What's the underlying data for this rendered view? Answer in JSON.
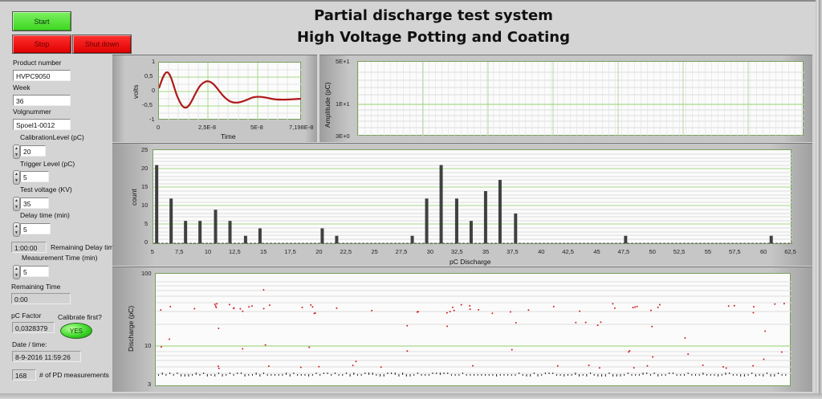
{
  "header": {
    "title_line1": "Partial discharge test system",
    "title_line2": "High Voltage Potting and Coating"
  },
  "buttons": {
    "start": "Start",
    "stop": "Stop",
    "shut_down": "Shut down"
  },
  "controls": {
    "product_number": {
      "label": "Product number",
      "value": "HVPC9050"
    },
    "week": {
      "label": "Week",
      "value": "36"
    },
    "volgnummer": {
      "label": "Volgnummer",
      "value": "Spoel1-0012"
    },
    "calibration_level": {
      "label": "CalibrationLevel (pC)",
      "value": "20"
    },
    "trigger_level": {
      "label": "Trigger Level (pC)",
      "value": "5"
    },
    "test_voltage": {
      "label": "Test voltage (KV)",
      "value": "35"
    },
    "delay_time": {
      "label": "Delay time (min)",
      "value": "5"
    },
    "remaining_delay": {
      "label": "Remaining Delay time",
      "value": "1:00:00"
    },
    "measurement_time": {
      "label": "Measurement Time (min)",
      "value": "5"
    },
    "remaining_time": {
      "label": "Remaining Time",
      "value": "0:00"
    },
    "pc_factor": {
      "label": "pC Factor",
      "value": "0,0328379"
    },
    "calibrate_first": {
      "label": "Calibrate first?",
      "value": "YES"
    },
    "date_time": {
      "label": "Date / time:",
      "value": "8-9-2016 11:59:26"
    },
    "pd_measurements": {
      "label": "# of PD measurements",
      "value": "168"
    }
  },
  "colors": {
    "background": "#d4d4d4",
    "start_green": "#3cd620",
    "stop_red": "#e00000",
    "trace_red": "#b01818",
    "bar_dark": "#404040",
    "grid_major": "#a8d888",
    "grid_minor": "#dcdcdc"
  },
  "chart_data": [
    {
      "type": "line",
      "name": "waveform",
      "title": "",
      "xlabel": "Time",
      "ylabel": "volts",
      "xlim": [
        0,
        7.198e-08
      ],
      "ylim": [
        -1,
        1
      ],
      "x_tick_labels": [
        "0",
        "2,5E-8",
        "5E-8",
        "7,198E-8"
      ],
      "y_tick_labels": [
        "1",
        "0,5",
        "0",
        "-0,5",
        "-1"
      ],
      "grid": true,
      "series": [
        {
          "name": "signal",
          "description": "damped oscillation",
          "x": [
            0,
            4e-09,
            1.4e-08,
            2.7e-08,
            4e-08,
            5.3e-08,
            6e-08,
            7.198e-08
          ],
          "values": [
            0.1,
            0.65,
            -0.58,
            0.45,
            -0.17,
            0.07,
            0.05,
            -0.02
          ]
        }
      ]
    },
    {
      "type": "scatter",
      "name": "amplitude",
      "xlabel": "",
      "ylabel": "Amplitude (pC)",
      "y_scale": "log",
      "ylim": [
        3,
        50
      ],
      "y_tick_labels": [
        "5E+1",
        "1E+1",
        "3E+0"
      ],
      "grid": true,
      "series": []
    },
    {
      "type": "bar",
      "name": "histogram",
      "xlabel": "pC Discharge",
      "ylabel": "count",
      "xlim": [
        5,
        62.5
      ],
      "ylim": [
        0,
        25
      ],
      "x_tick_labels": [
        "5",
        "7,5",
        "10",
        "12,5",
        "15",
        "17,5",
        "20",
        "22,5",
        "25",
        "27,5",
        "30",
        "32,5",
        "35",
        "37,5",
        "40",
        "42,5",
        "45",
        "47,5",
        "50",
        "52,5",
        "55",
        "57,5",
        "60",
        "62,5"
      ],
      "y_tick_labels": [
        "25",
        "20",
        "15",
        "10",
        "5",
        "0"
      ],
      "grid": true,
      "categories": [
        5.3,
        6.6,
        7.9,
        9.2,
        10.6,
        11.9,
        13.3,
        14.6,
        20.2,
        21.5,
        28.3,
        29.6,
        30.9,
        32.3,
        33.6,
        34.9,
        36.2,
        37.6,
        47.5,
        60.6
      ],
      "values": [
        21,
        12,
        6,
        6,
        9,
        6,
        2,
        4,
        4,
        2,
        2,
        12,
        21,
        12,
        6,
        14,
        17,
        8,
        2,
        2
      ]
    },
    {
      "type": "scatter",
      "name": "discharge",
      "xlabel": "",
      "ylabel": "Discharge (pC)",
      "y_scale": "log",
      "ylim": [
        3,
        100
      ],
      "y_tick_labels": [
        "100",
        "10",
        "3"
      ],
      "grid": true,
      "series": [
        {
          "name": "pd-events",
          "count": 168,
          "description": "cluster near 30-37 pC, cluster near 4-5 pC (baseline), scattered 6-20 pC"
        }
      ]
    }
  ]
}
